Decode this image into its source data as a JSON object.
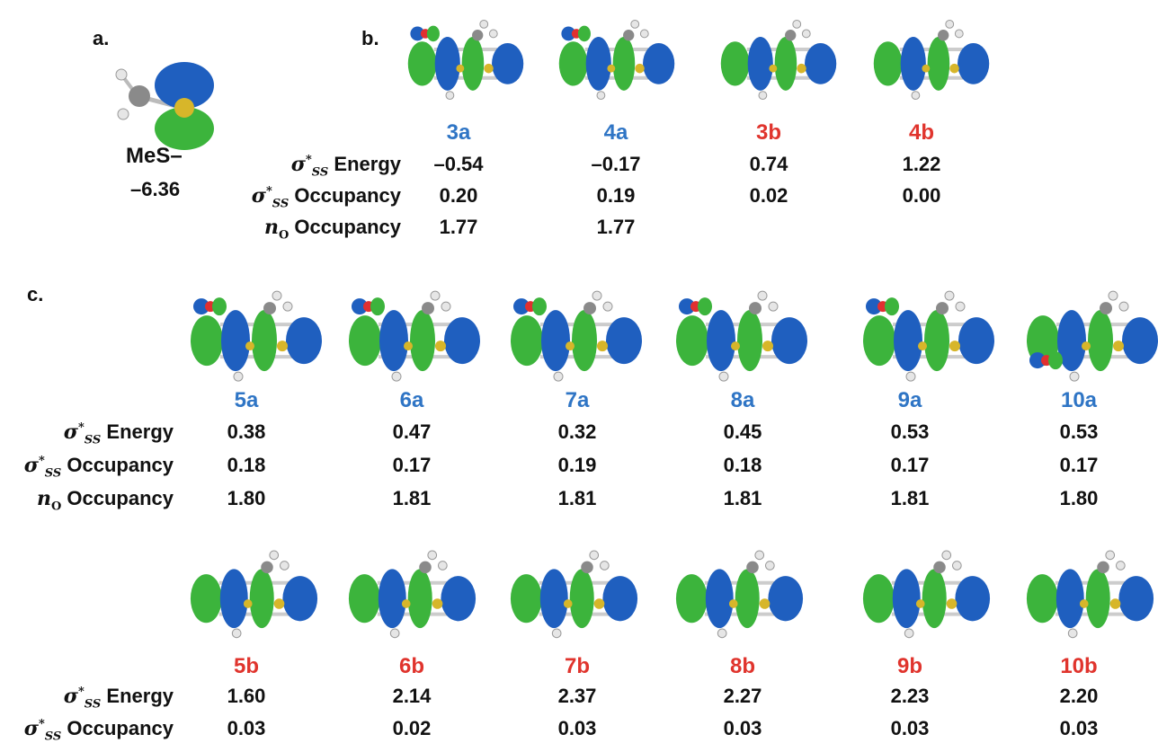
{
  "panels": {
    "a": "a.",
    "b": "b.",
    "c": "c."
  },
  "reference": {
    "name": "MeS–",
    "value": "–6.36"
  },
  "row_labels": {
    "sigma_symbol": "σ",
    "sigma_sup": "*",
    "sigma_sub": "SS",
    "n_symbol": "n",
    "n_sub": "O",
    "energy": "Energy",
    "occupancy": "Occupancy"
  },
  "section_b": [
    {
      "id": "3a",
      "series": "a",
      "sigma_energy": "–0.54",
      "sigma_occupancy": "0.20",
      "n_occupancy": "1.77"
    },
    {
      "id": "4a",
      "series": "a",
      "sigma_energy": "–0.17",
      "sigma_occupancy": "0.19",
      "n_occupancy": "1.77"
    },
    {
      "id": "3b",
      "series": "b",
      "sigma_energy": "0.74",
      "sigma_occupancy": "0.02",
      "n_occupancy": ""
    },
    {
      "id": "4b",
      "series": "b",
      "sigma_energy": "1.22",
      "sigma_occupancy": "0.00",
      "n_occupancy": ""
    }
  ],
  "section_c_a": [
    {
      "id": "5a",
      "sigma_energy": "0.38",
      "sigma_occupancy": "0.18",
      "n_occupancy": "1.80"
    },
    {
      "id": "6a",
      "sigma_energy": "0.47",
      "sigma_occupancy": "0.17",
      "n_occupancy": "1.81"
    },
    {
      "id": "7a",
      "sigma_energy": "0.32",
      "sigma_occupancy": "0.19",
      "n_occupancy": "1.81"
    },
    {
      "id": "8a",
      "sigma_energy": "0.45",
      "sigma_occupancy": "0.18",
      "n_occupancy": "1.81"
    },
    {
      "id": "9a",
      "sigma_energy": "0.53",
      "sigma_occupancy": "0.17",
      "n_occupancy": "1.81"
    },
    {
      "id": "10a",
      "sigma_energy": "0.53",
      "sigma_occupancy": "0.17",
      "n_occupancy": "1.80"
    }
  ],
  "section_c_b": [
    {
      "id": "5b",
      "sigma_energy": "1.60",
      "sigma_occupancy": "0.03"
    },
    {
      "id": "6b",
      "sigma_energy": "2.14",
      "sigma_occupancy": "0.02"
    },
    {
      "id": "7b",
      "sigma_energy": "2.37",
      "sigma_occupancy": "0.03"
    },
    {
      "id": "8b",
      "sigma_energy": "2.27",
      "sigma_occupancy": "0.03"
    },
    {
      "id": "9b",
      "sigma_energy": "2.23",
      "sigma_occupancy": "0.03"
    },
    {
      "id": "10b",
      "sigma_energy": "2.20",
      "sigma_occupancy": "0.03"
    }
  ],
  "colors": {
    "a_series": "#2f75c5",
    "b_series": "#e0342d",
    "lobe_blue": "#1f5fbf",
    "lobe_green": "#3cb43c",
    "sulfur": "#d7b62a",
    "oxygen": "#e03030",
    "carbon": "#8a8a8a",
    "hydrogen": "#e6e6e6"
  }
}
